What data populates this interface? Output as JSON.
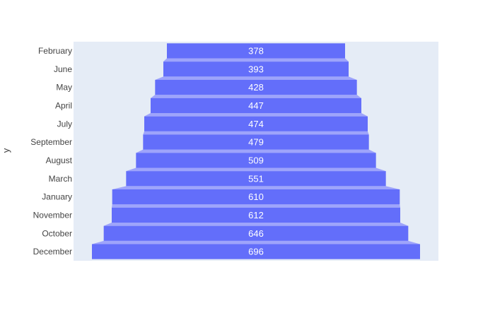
{
  "chart_data": {
    "type": "funnel",
    "ylabel": "y",
    "categories": [
      "February",
      "June",
      "May",
      "April",
      "July",
      "September",
      "August",
      "March",
      "January",
      "November",
      "October",
      "December"
    ],
    "values": [
      378,
      393,
      428,
      447,
      474,
      479,
      509,
      551,
      610,
      612,
      646,
      696
    ],
    "bar_color": "#636efa",
    "connector_color": "#9ea4fb",
    "plot_bg": "#e5ecf6",
    "text_color": "#444444",
    "label_color": "#ffffff",
    "gridlines": false
  }
}
